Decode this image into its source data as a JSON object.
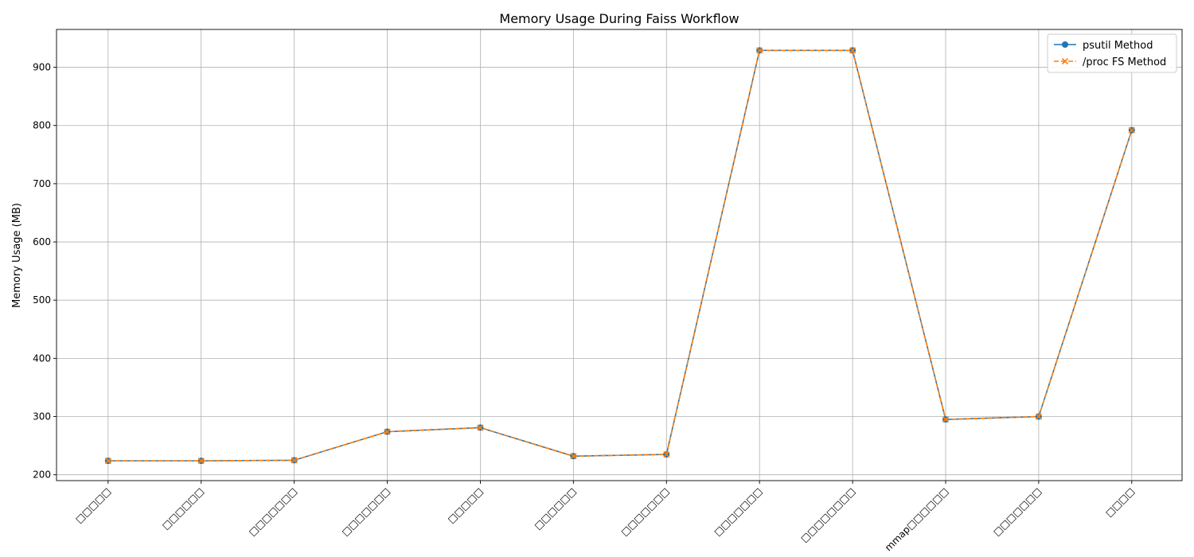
{
  "chart_data": {
    "type": "line",
    "title": "Memory Usage During Faiss Workflow",
    "xlabel": "",
    "ylabel": "Memory Usage (MB)",
    "categories": [
      "□□□□□",
      "□□□□□□",
      "□□□□□□□",
      "□□□□□□□",
      "□□□□□",
      "□□□□□□",
      "□□□□□□□",
      "□□□□□□□",
      "□□□□□□□□",
      "mmap□□□□□□",
      "□□□□□□□",
      "□□□□"
    ],
    "ylim": [
      190,
      965
    ],
    "yticks": [
      200,
      300,
      400,
      500,
      600,
      700,
      800,
      900
    ],
    "grid": true,
    "legend_position": "top-right",
    "series": [
      {
        "name": "psutil Method",
        "color": "#1f77b4",
        "marker": "circle",
        "linestyle": "solid",
        "values": [
          224,
          224,
          225,
          274,
          281,
          232,
          235,
          929,
          929,
          295,
          300,
          792
        ]
      },
      {
        "name": "/proc FS Method",
        "color": "#ff7f0e",
        "marker": "x",
        "linestyle": "dashed",
        "values": [
          224,
          224,
          225,
          274,
          281,
          232,
          235,
          929,
          929,
          295,
          300,
          792
        ]
      }
    ]
  }
}
